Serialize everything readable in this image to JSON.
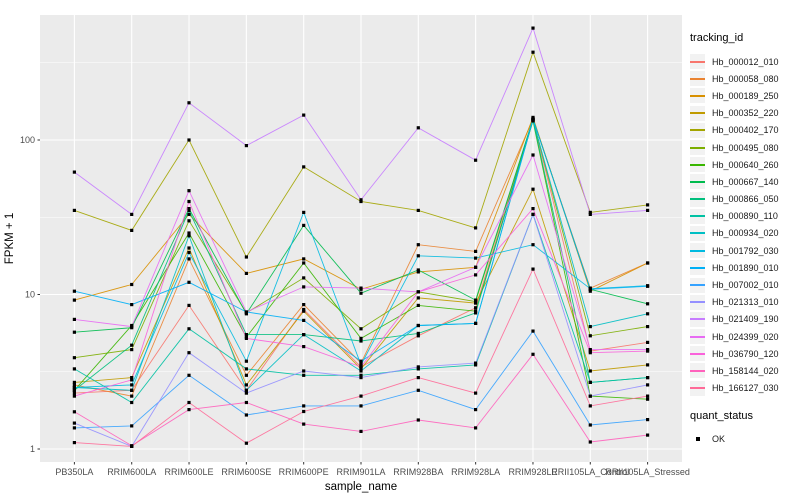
{
  "chart_data": {
    "type": "line",
    "xlabel": "sample_name",
    "ylabel": "FPKM + 1",
    "y_scale": "log10",
    "y_ticks": [
      1,
      10,
      100
    ],
    "y_minor_ticks": [
      3.162,
      31.62,
      316.2
    ],
    "ylim": [
      0.82,
      650
    ],
    "grid": true,
    "legend_position": "right",
    "legend_title": "tracking_id",
    "categories": [
      "PB350LA",
      "RRIM600LA",
      "RRIM600LE",
      "RRIM600SE",
      "RRIM600PE",
      "RRIM901LA",
      "RRIM928BA",
      "RRIM928LA",
      "RRIM928LE",
      "RRII105LA_Control",
      "RRII105LA_Stressed"
    ],
    "series": [
      {
        "name": "Hb_000012_010",
        "color": "#F8766D",
        "values": [
          2.3,
          2.4,
          8.5,
          2.4,
          8.0,
          3.4,
          5.4,
          8.2,
          135,
          4.3,
          4.9
        ]
      },
      {
        "name": "Hb_000058_080",
        "color": "#EA8331",
        "values": [
          2.6,
          2.2,
          17,
          3.0,
          8.6,
          3.6,
          21,
          19,
          137,
          11,
          16
        ]
      },
      {
        "name": "Hb_000189_250",
        "color": "#D89000",
        "values": [
          9.2,
          11.6,
          33,
          13.7,
          17,
          10.8,
          14,
          15,
          140,
          10.5,
          16
        ]
      },
      {
        "name": "Hb_000352_220",
        "color": "#C09B00",
        "values": [
          2.7,
          2.9,
          20,
          2.6,
          7.8,
          3.3,
          9.5,
          8.8,
          48,
          3.2,
          3.5
        ]
      },
      {
        "name": "Hb_000402_170",
        "color": "#A3A500",
        "values": [
          35,
          26,
          100,
          17.5,
          67,
          40,
          35,
          27,
          370,
          34,
          38
        ]
      },
      {
        "name": "Hb_000495_080",
        "color": "#7CAE00",
        "values": [
          3.9,
          4.4,
          30,
          7.6,
          12.8,
          6.0,
          10.4,
          9.0,
          135,
          5.4,
          6.2
        ]
      },
      {
        "name": "Hb_000640_260",
        "color": "#39B600",
        "values": [
          2.4,
          6.3,
          25,
          5.3,
          16,
          5.2,
          8.5,
          7.8,
          133,
          2.2,
          2.1
        ]
      },
      {
        "name": "Hb_000667_140",
        "color": "#00BB4E",
        "values": [
          5.7,
          6.1,
          36,
          7.5,
          28,
          10.2,
          14.4,
          9.2,
          137,
          10.8,
          8.7
        ]
      },
      {
        "name": "Hb_000866_050",
        "color": "#00BF7D",
        "values": [
          2.4,
          4.7,
          35,
          5.5,
          5.5,
          5.0,
          5.6,
          7.6,
          135,
          2.7,
          2.9
        ]
      },
      {
        "name": "Hb_000890_110",
        "color": "#00C1A3",
        "values": [
          3.3,
          2.0,
          6.0,
          3.3,
          3.0,
          3.0,
          3.3,
          3.5,
          33,
          2.7,
          2.9
        ]
      },
      {
        "name": "Hb_000934_020",
        "color": "#00BFC4",
        "values": [
          2.5,
          2.4,
          24,
          2.4,
          5.5,
          3.2,
          6.3,
          6.5,
          135,
          6.2,
          7.5
        ]
      },
      {
        "name": "Hb_001792_030",
        "color": "#00BAE0",
        "values": [
          2.5,
          2.6,
          18.7,
          3.7,
          34,
          3.5,
          17.8,
          17.2,
          21,
          10.9,
          11.4
        ]
      },
      {
        "name": "Hb_001890_010",
        "color": "#00B0F6",
        "values": [
          10.5,
          8.6,
          12,
          7.7,
          6.8,
          3.7,
          6.3,
          6.5,
          137,
          10.8,
          11.3
        ]
      },
      {
        "name": "Hb_007002_010",
        "color": "#35A2FF",
        "values": [
          1.37,
          1.41,
          3.0,
          1.66,
          1.9,
          1.9,
          2.4,
          1.8,
          5.8,
          1.43,
          1.55
        ]
      },
      {
        "name": "Hb_021313_010",
        "color": "#9590FF",
        "values": [
          1.47,
          1.04,
          4.2,
          2.3,
          3.2,
          2.9,
          3.4,
          3.6,
          33,
          2.2,
          2.6
        ]
      },
      {
        "name": "Hb_021409_190",
        "color": "#C77CFF",
        "values": [
          62,
          33,
          174,
          92,
          145,
          41,
          120,
          74,
          530,
          33,
          35
        ]
      },
      {
        "name": "Hb_024399_020",
        "color": "#E76BF3",
        "values": [
          6.9,
          6.2,
          47,
          7.7,
          11.2,
          11.0,
          10.4,
          15,
          80,
          4.4,
          4.4
        ]
      },
      {
        "name": "Hb_036790_120",
        "color": "#FA62DB",
        "values": [
          2.2,
          2.8,
          40,
          5.2,
          4.6,
          3.4,
          10.4,
          13.4,
          36,
          4.2,
          4.3
        ]
      },
      {
        "name": "Hb_158144_020",
        "color": "#FF62BC",
        "values": [
          1.74,
          1.05,
          1.8,
          2.0,
          1.45,
          1.3,
          1.54,
          1.37,
          4.1,
          1.11,
          1.23
        ]
      },
      {
        "name": "Hb_166127_030",
        "color": "#FF6A98",
        "values": [
          1.1,
          1.04,
          2.0,
          1.09,
          1.75,
          2.2,
          2.9,
          2.3,
          14.6,
          1.9,
          2.2
        ]
      }
    ],
    "quant_legend": {
      "title": "quant_status",
      "items": [
        {
          "label": "OK",
          "marker": "black-square"
        }
      ]
    },
    "colors": {
      "panel_bg": "#EBEBEB",
      "grid": "#FFFFFF",
      "tick_text": "#4D4D4D",
      "axis_title": "#000000",
      "point": "#000000",
      "legend_key_bg": "#F2F2F2"
    }
  }
}
